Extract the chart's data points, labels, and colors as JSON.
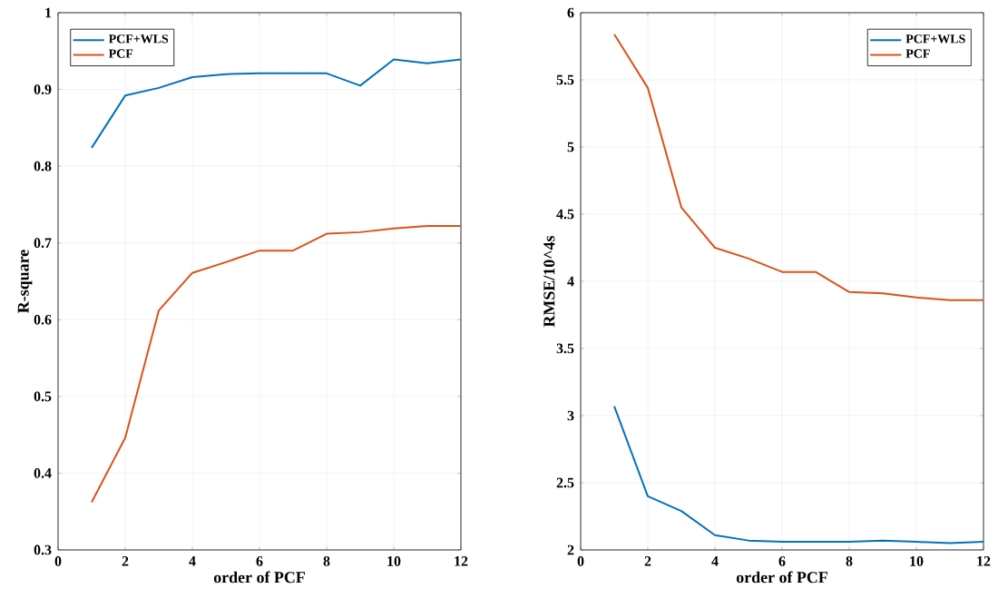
{
  "chart_data": [
    {
      "type": "line",
      "xlabel": "order of PCF",
      "ylabel": "R-square",
      "x": [
        1,
        2,
        3,
        4,
        5,
        6,
        7,
        8,
        9,
        10,
        11,
        12
      ],
      "xlim": [
        0,
        12
      ],
      "xticks": [
        0,
        2,
        4,
        6,
        8,
        10,
        12
      ],
      "ylim": [
        0.3,
        1
      ],
      "yticks": [
        0.3,
        0.4,
        0.5,
        0.6,
        0.7,
        0.8,
        0.9,
        1
      ],
      "grid": true,
      "legend": "top left",
      "series": [
        {
          "name": "PCF+WLS",
          "color": "#0072bd",
          "values": [
            0.824,
            0.892,
            0.902,
            0.916,
            0.92,
            0.921,
            0.921,
            0.921,
            0.905,
            0.939,
            0.934,
            0.939
          ]
        },
        {
          "name": "PCF",
          "color": "#d95319",
          "values": [
            0.362,
            0.446,
            0.612,
            0.661,
            0.675,
            0.69,
            0.69,
            0.712,
            0.714,
            0.719,
            0.722,
            0.722
          ]
        }
      ]
    },
    {
      "type": "line",
      "xlabel": "order of PCF",
      "ylabel": "RMSE/10^4s",
      "x": [
        1,
        2,
        3,
        4,
        5,
        6,
        7,
        8,
        9,
        10,
        11,
        12
      ],
      "xlim": [
        0,
        12
      ],
      "xticks": [
        0,
        2,
        4,
        6,
        8,
        10,
        12
      ],
      "ylim": [
        2,
        6
      ],
      "yticks": [
        2,
        2.5,
        3,
        3.5,
        4,
        4.5,
        5,
        5.5,
        6
      ],
      "grid": true,
      "legend": "top right",
      "series": [
        {
          "name": "PCF+WLS",
          "color": "#0072bd",
          "values": [
            3.07,
            2.4,
            2.29,
            2.11,
            2.07,
            2.06,
            2.06,
            2.06,
            2.07,
            2.06,
            2.05,
            2.06
          ]
        },
        {
          "name": "PCF",
          "color": "#d95319",
          "values": [
            5.84,
            5.44,
            4.55,
            4.25,
            4.17,
            4.07,
            4.07,
            3.92,
            3.91,
            3.88,
            3.86,
            3.86
          ]
        }
      ]
    }
  ]
}
